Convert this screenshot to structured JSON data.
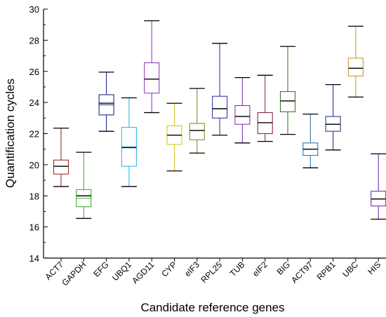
{
  "chart_data": {
    "type": "box",
    "xlabel": "Candidate reference genes",
    "ylabel": "Quantification cycles",
    "ylim": [
      14,
      30
    ],
    "yticks": [
      "14",
      "16",
      "18",
      "20",
      "22",
      "24",
      "26",
      "28",
      "30"
    ],
    "grid": false,
    "legend": "none",
    "categories": [
      "ACT7",
      "GAPDH",
      "EFG",
      "UBQ1",
      "AGD11",
      "CYP",
      "eIF3",
      "RPL25",
      "TUB",
      "eIF2",
      "BIG",
      "ACT97",
      "RPB1",
      "UBC",
      "HIS"
    ],
    "boxes": [
      {
        "gene": "ACT7",
        "min": 18.6,
        "q1": 19.4,
        "median": 19.9,
        "mean": 19.9,
        "q3": 20.3,
        "max": 22.35,
        "color": "#a0302a"
      },
      {
        "gene": "GAPDH",
        "min": 16.55,
        "q1": 17.3,
        "median": 18.0,
        "mean": 17.85,
        "q3": 18.4,
        "max": 20.8,
        "color": "#3fb52c"
      },
      {
        "gene": "EFG",
        "min": 22.15,
        "q1": 23.2,
        "median": 23.95,
        "mean": 23.85,
        "q3": 24.5,
        "max": 25.95,
        "color": "#1c2a8a"
      },
      {
        "gene": "UBQ1",
        "min": 18.6,
        "q1": 19.9,
        "median": 21.1,
        "mean": 21.15,
        "q3": 22.4,
        "max": 24.3,
        "color": "#36b6e6"
      },
      {
        "gene": "AGD11",
        "min": 23.35,
        "q1": 24.6,
        "median": 25.5,
        "mean": 25.5,
        "q3": 26.55,
        "max": 29.25,
        "color": "#9b3fbe"
      },
      {
        "gene": "CYP",
        "min": 19.6,
        "q1": 21.3,
        "median": 21.9,
        "mean": 21.9,
        "q3": 22.5,
        "max": 23.95,
        "color": "#d9c32a"
      },
      {
        "gene": "eIF3",
        "min": 20.75,
        "q1": 21.6,
        "median": 22.2,
        "mean": 22.2,
        "q3": 22.65,
        "max": 24.9,
        "color": "#8c8c2a"
      },
      {
        "gene": "RPL25",
        "min": 21.9,
        "q1": 23.0,
        "median": 23.6,
        "mean": 23.6,
        "q3": 24.4,
        "max": 27.8,
        "color": "#3a3aa8"
      },
      {
        "gene": "TUB",
        "min": 21.4,
        "q1": 22.6,
        "median": 23.1,
        "mean": 23.1,
        "q3": 23.8,
        "max": 25.6,
        "color": "#7d3ca8"
      },
      {
        "gene": "eIF2",
        "min": 21.5,
        "q1": 22.0,
        "median": 22.7,
        "mean": 22.7,
        "q3": 23.35,
        "max": 25.75,
        "color": "#8a2b3a"
      },
      {
        "gene": "BIG",
        "min": 21.95,
        "q1": 23.4,
        "median": 24.1,
        "mean": 24.1,
        "q3": 24.7,
        "max": 27.6,
        "color": "#3c7a2a"
      },
      {
        "gene": "ACT97",
        "min": 19.8,
        "q1": 20.6,
        "median": 21.0,
        "mean": 21.0,
        "q3": 21.4,
        "max": 23.25,
        "color": "#2a7aa8"
      },
      {
        "gene": "RPB1",
        "min": 20.95,
        "q1": 22.15,
        "median": 22.6,
        "mean": 22.6,
        "q3": 23.1,
        "max": 25.15,
        "color": "#2a3a8a"
      },
      {
        "gene": "UBC",
        "min": 24.35,
        "q1": 25.7,
        "median": 26.2,
        "mean": 26.2,
        "q3": 26.85,
        "max": 28.9,
        "color": "#c8a02a"
      },
      {
        "gene": "HIS",
        "min": 16.5,
        "q1": 17.35,
        "median": 17.8,
        "mean": 17.8,
        "q3": 18.3,
        "max": 20.7,
        "color": "#7b2fa8"
      }
    ]
  }
}
